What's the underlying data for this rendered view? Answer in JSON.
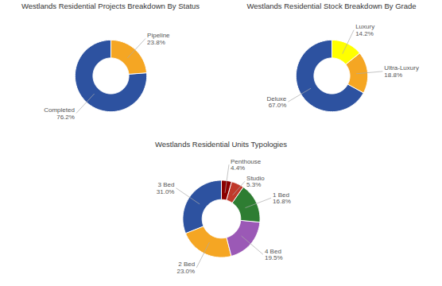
{
  "chart_data": [
    {
      "type": "pie",
      "title": "Westlands Residential Projects Breakdown By Status",
      "categories": [
        "Pipeline",
        "Completed"
      ],
      "values": [
        23.8,
        76.2
      ],
      "value_labels": [
        "23.8%",
        "76.2%"
      ],
      "colors": [
        "#f5a623",
        "#2d52a0"
      ],
      "data_labels": true
    },
    {
      "type": "pie",
      "title": "Westlands Residential Stock Breakdown By Grade",
      "categories": [
        "Luxury",
        "Ultra-Luxury",
        "Deluxe"
      ],
      "values": [
        14.2,
        18.8,
        67.0
      ],
      "value_labels": [
        "14.2%",
        "18.8%",
        "67.0%"
      ],
      "colors": [
        "#ffff00",
        "#f5a623",
        "#2d52a0"
      ],
      "data_labels": true
    },
    {
      "type": "pie",
      "title": "Westlands Residential Units Typologies",
      "categories": [
        "Penthouse",
        "Studio",
        "1 Bed",
        "4 Bed",
        "2 Bed",
        "3 Bed"
      ],
      "values": [
        4.4,
        5.3,
        16.8,
        19.5,
        23.0,
        31.0
      ],
      "value_labels": [
        "4.4%",
        "5.3%",
        "16.8%",
        "19.5%",
        "23.0%",
        "31.0%"
      ],
      "colors": [
        "#8b0000",
        "#c0392b",
        "#2e7d32",
        "#9b59b6",
        "#f5a623",
        "#2d52a0"
      ],
      "data_labels": true
    }
  ]
}
